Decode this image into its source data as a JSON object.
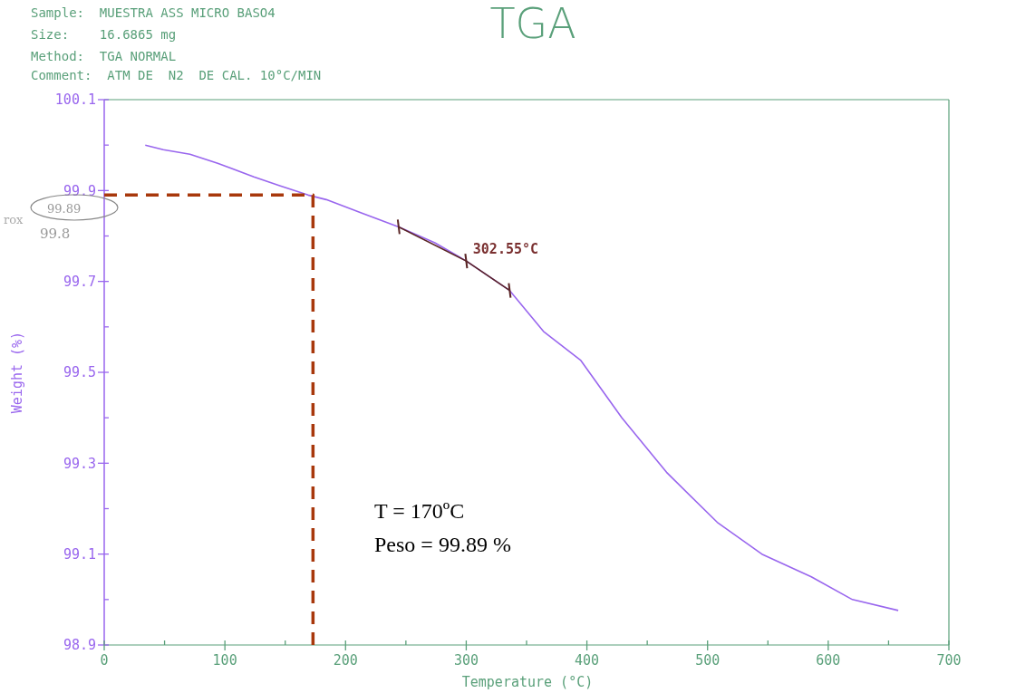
{
  "chart_data": {
    "type": "line",
    "title": "TGA",
    "xlabel": "Temperature (°C)",
    "ylabel": "Weight (%)",
    "annotations": [
      "Sample:  MUESTRA ASS MICRO BASO4",
      "Size:    16.6865 mg",
      "Method:  TGA NORMAL",
      "Comment:  ATM DE  N2  DE CAL. 10°C/MIN",
      "rox",
      "99.89",
      "99.8",
      {
        "text": "302.55°C",
        "x": 302.55,
        "y": 99.745
      },
      "T = 170ºC",
      "Peso = 99.89 %"
    ],
    "xlim": [
      0,
      700
    ],
    "ylim": [
      98.9,
      100.1
    ],
    "xticks": [
      0,
      {
        "value": 50,
        "label": null
      },
      100,
      {
        "value": 150,
        "label": null
      },
      200,
      {
        "value": 250,
        "label": null
      },
      300,
      {
        "value": 350,
        "label": null
      },
      400,
      {
        "value": 450,
        "label": null
      },
      500,
      {
        "value": 550,
        "label": null
      },
      600,
      {
        "value": 650,
        "label": null
      },
      700
    ],
    "yticks": [
      98.9,
      {
        "value": 99.0,
        "label": null
      },
      99.1,
      {
        "value": 99.2,
        "label": null
      },
      99.3,
      {
        "value": 99.4,
        "label": null
      },
      99.5,
      {
        "value": 99.6,
        "label": null
      },
      99.7,
      {
        "value": 99.8,
        "label": null
      },
      99.9,
      {
        "value": 100.0,
        "label": null
      },
      100.1
    ],
    "grid": false,
    "marker": "none",
    "series": [
      {
        "color": "#9966ee",
        "line_style": "solid",
        "x": [
          34,
          49,
          71,
          94,
          124,
          146,
          169,
          184,
          214,
          244,
          274,
          300,
          336,
          364,
          395,
          429,
          466,
          508,
          545,
          586,
          620,
          658
        ],
        "values": [
          100.0,
          99.99,
          99.98,
          99.96,
          99.93,
          99.91,
          99.89,
          99.88,
          99.85,
          99.82,
          99.785,
          99.745,
          99.68,
          99.59,
          99.526,
          99.4,
          99.28,
          99.17,
          99.1,
          99.05,
          99.0,
          98.976
        ]
      },
      {
        "color": "#5a2525",
        "line_style": "solid",
        "x": [
          244,
          300,
          336
        ],
        "values": [
          99.82,
          99.745,
          99.68
        ]
      },
      {
        "color": "#a8380c",
        "line_style": "dashed",
        "x": [
          0,
          173,
          173
        ],
        "values": [
          99.89,
          99.89,
          98.9
        ]
      }
    ]
  }
}
